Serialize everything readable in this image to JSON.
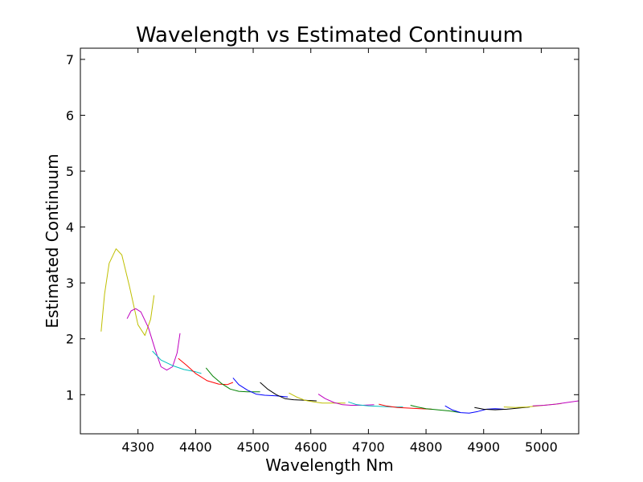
{
  "chart_data": {
    "type": "line",
    "title": "Wavelength vs Estimated Continuum",
    "xlabel": "Wavelength Nm",
    "ylabel": "Estimated Continuum",
    "xlim": [
      4200,
      5065
    ],
    "ylim": [
      0.3,
      7.2
    ],
    "xticks": [
      4300,
      4400,
      4500,
      4600,
      4700,
      4800,
      4900,
      5000
    ],
    "yticks": [
      1,
      2,
      3,
      4,
      5,
      6,
      7
    ],
    "grid": false,
    "legend": "none",
    "series": [
      {
        "color": "#bfbf00",
        "points": [
          [
            4236,
            2.13
          ],
          [
            4242,
            2.8
          ],
          [
            4250,
            3.35
          ],
          [
            4262,
            3.61
          ],
          [
            4272,
            3.5
          ],
          [
            4285,
            2.95
          ],
          [
            4300,
            2.25
          ],
          [
            4312,
            2.06
          ],
          [
            4322,
            2.35
          ],
          [
            4328,
            2.78
          ]
        ]
      },
      {
        "color": "#bf00bf",
        "points": [
          [
            4281,
            2.36
          ],
          [
            4288,
            2.5
          ],
          [
            4296,
            2.54
          ],
          [
            4305,
            2.48
          ],
          [
            4318,
            2.2
          ],
          [
            4330,
            1.8
          ],
          [
            4340,
            1.5
          ],
          [
            4350,
            1.44
          ],
          [
            4360,
            1.5
          ],
          [
            4368,
            1.75
          ],
          [
            4373,
            2.1
          ]
        ]
      },
      {
        "color": "#00bfbf",
        "points": [
          [
            4325,
            1.78
          ],
          [
            4340,
            1.62
          ],
          [
            4360,
            1.52
          ],
          [
            4380,
            1.45
          ],
          [
            4400,
            1.41
          ],
          [
            4410,
            1.38
          ]
        ]
      },
      {
        "color": "#ff0000",
        "points": [
          [
            4370,
            1.65
          ],
          [
            4385,
            1.52
          ],
          [
            4400,
            1.38
          ],
          [
            4420,
            1.25
          ],
          [
            4440,
            1.19
          ],
          [
            4455,
            1.18
          ],
          [
            4465,
            1.22
          ]
        ]
      },
      {
        "color": "#008000",
        "points": [
          [
            4418,
            1.48
          ],
          [
            4430,
            1.33
          ],
          [
            4445,
            1.2
          ],
          [
            4460,
            1.1
          ],
          [
            4475,
            1.06
          ],
          [
            4490,
            1.05
          ],
          [
            4512,
            1.05
          ]
        ]
      },
      {
        "color": "#0000ff",
        "points": [
          [
            4465,
            1.3
          ],
          [
            4475,
            1.18
          ],
          [
            4490,
            1.08
          ],
          [
            4505,
            1.01
          ],
          [
            4520,
            0.99
          ],
          [
            4540,
            0.98
          ],
          [
            4560,
            0.96
          ]
        ]
      },
      {
        "color": "#000000",
        "points": [
          [
            4512,
            1.22
          ],
          [
            4525,
            1.1
          ],
          [
            4540,
            1.0
          ],
          [
            4555,
            0.93
          ],
          [
            4570,
            0.91
          ],
          [
            4590,
            0.9
          ],
          [
            4610,
            0.89
          ]
        ]
      },
      {
        "color": "#bfbf00",
        "points": [
          [
            4562,
            1.03
          ],
          [
            4575,
            0.96
          ],
          [
            4590,
            0.9
          ],
          [
            4605,
            0.87
          ],
          [
            4620,
            0.85
          ],
          [
            4640,
            0.85
          ],
          [
            4660,
            0.85
          ]
        ]
      },
      {
        "color": "#bf00bf",
        "points": [
          [
            4613,
            1.01
          ],
          [
            4625,
            0.93
          ],
          [
            4640,
            0.86
          ],
          [
            4655,
            0.82
          ],
          [
            4670,
            0.81
          ],
          [
            4690,
            0.81
          ],
          [
            4710,
            0.82
          ]
        ]
      },
      {
        "color": "#00bfbf",
        "points": [
          [
            4665,
            0.87
          ],
          [
            4680,
            0.82
          ],
          [
            4700,
            0.8
          ],
          [
            4720,
            0.79
          ],
          [
            4740,
            0.78
          ],
          [
            4760,
            0.78
          ]
        ]
      },
      {
        "color": "#ff0000",
        "points": [
          [
            4718,
            0.83
          ],
          [
            4730,
            0.8
          ],
          [
            4750,
            0.77
          ],
          [
            4770,
            0.76
          ],
          [
            4790,
            0.75
          ],
          [
            4810,
            0.74
          ]
        ]
      },
      {
        "color": "#008000",
        "points": [
          [
            4773,
            0.81
          ],
          [
            4785,
            0.78
          ],
          [
            4800,
            0.75
          ],
          [
            4820,
            0.73
          ],
          [
            4840,
            0.71
          ],
          [
            4860,
            0.68
          ]
        ]
      },
      {
        "color": "#0000ff",
        "points": [
          [
            4833,
            0.8
          ],
          [
            4845,
            0.73
          ],
          [
            4860,
            0.68
          ],
          [
            4875,
            0.67
          ],
          [
            4890,
            0.7
          ],
          [
            4905,
            0.74
          ],
          [
            4920,
            0.75
          ],
          [
            4935,
            0.74
          ]
        ]
      },
      {
        "color": "#000000",
        "points": [
          [
            4884,
            0.77
          ],
          [
            4900,
            0.74
          ],
          [
            4920,
            0.73
          ],
          [
            4940,
            0.74
          ],
          [
            4960,
            0.76
          ],
          [
            4980,
            0.78
          ]
        ]
      },
      {
        "color": "#bfbf00",
        "points": [
          [
            4935,
            0.78
          ],
          [
            4955,
            0.77
          ],
          [
            4975,
            0.78
          ],
          [
            4995,
            0.8
          ],
          [
            5015,
            0.82
          ],
          [
            5035,
            0.84
          ]
        ]
      },
      {
        "color": "#bf00bf",
        "points": [
          [
            4985,
            0.8
          ],
          [
            5005,
            0.81
          ],
          [
            5025,
            0.83
          ],
          [
            5045,
            0.86
          ],
          [
            5065,
            0.89
          ]
        ]
      }
    ]
  }
}
